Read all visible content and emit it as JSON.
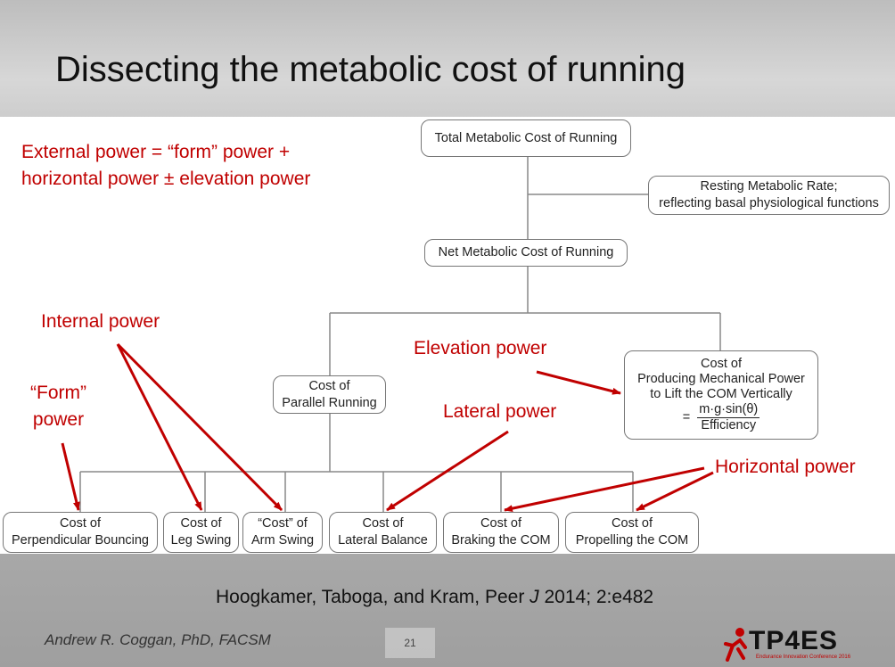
{
  "title": "Dissecting the metabolic cost of running",
  "annotations": {
    "external_line1": "External power = “form” power +",
    "external_line2": "horizontal power ± elevation power",
    "internal_power": "Internal power",
    "form_power_line1": "“Form”",
    "form_power_line2": "power",
    "elevation_power": "Elevation power",
    "lateral_power": "Lateral power",
    "horizontal_power": "Horizontal power"
  },
  "boxes": {
    "total": "Total Metabolic Cost of Running",
    "resting_line1": "Resting Metabolic Rate;",
    "resting_line2": "reflecting basal physiological functions",
    "net": "Net Metabolic Cost of Running",
    "parallel_line1": "Cost of",
    "parallel_line2": "Parallel Running",
    "mech_line1": "Cost of",
    "mech_line2": "Producing Mechanical Power",
    "mech_line3": "to Lift the COM Vertically",
    "mech_eq_prefix": "=",
    "mech_numerator": "m·g·sin(θ)",
    "mech_denominator": "Efficiency",
    "perp_line1": "Cost of",
    "perp_line2": "Perpendicular Bouncing",
    "leg_line1": "Cost of",
    "leg_line2": "Leg Swing",
    "arm_line1": "“Cost” of",
    "arm_line2": "Arm Swing",
    "lateral_line1": "Cost of",
    "lateral_line2": "Lateral Balance",
    "braking_line1": "Cost of",
    "braking_line2": "Braking the COM",
    "propelling_line1": "Cost of",
    "propelling_line2": "Propelling the COM"
  },
  "citation": {
    "pre": "Hoogkamer, Taboga, and Kram, Peer ",
    "journal": "J",
    "post": " 2014; 2:e482"
  },
  "footer": {
    "author": "Andrew R. Coggan, PhD, FACSM",
    "page_number": "21",
    "logo_text": "TP4ES",
    "logo_subtext": "Endurance Innovation Conference 2016"
  },
  "colors": {
    "annotation_red": "#c00000",
    "box_border": "#777777",
    "connector": "#888888"
  }
}
